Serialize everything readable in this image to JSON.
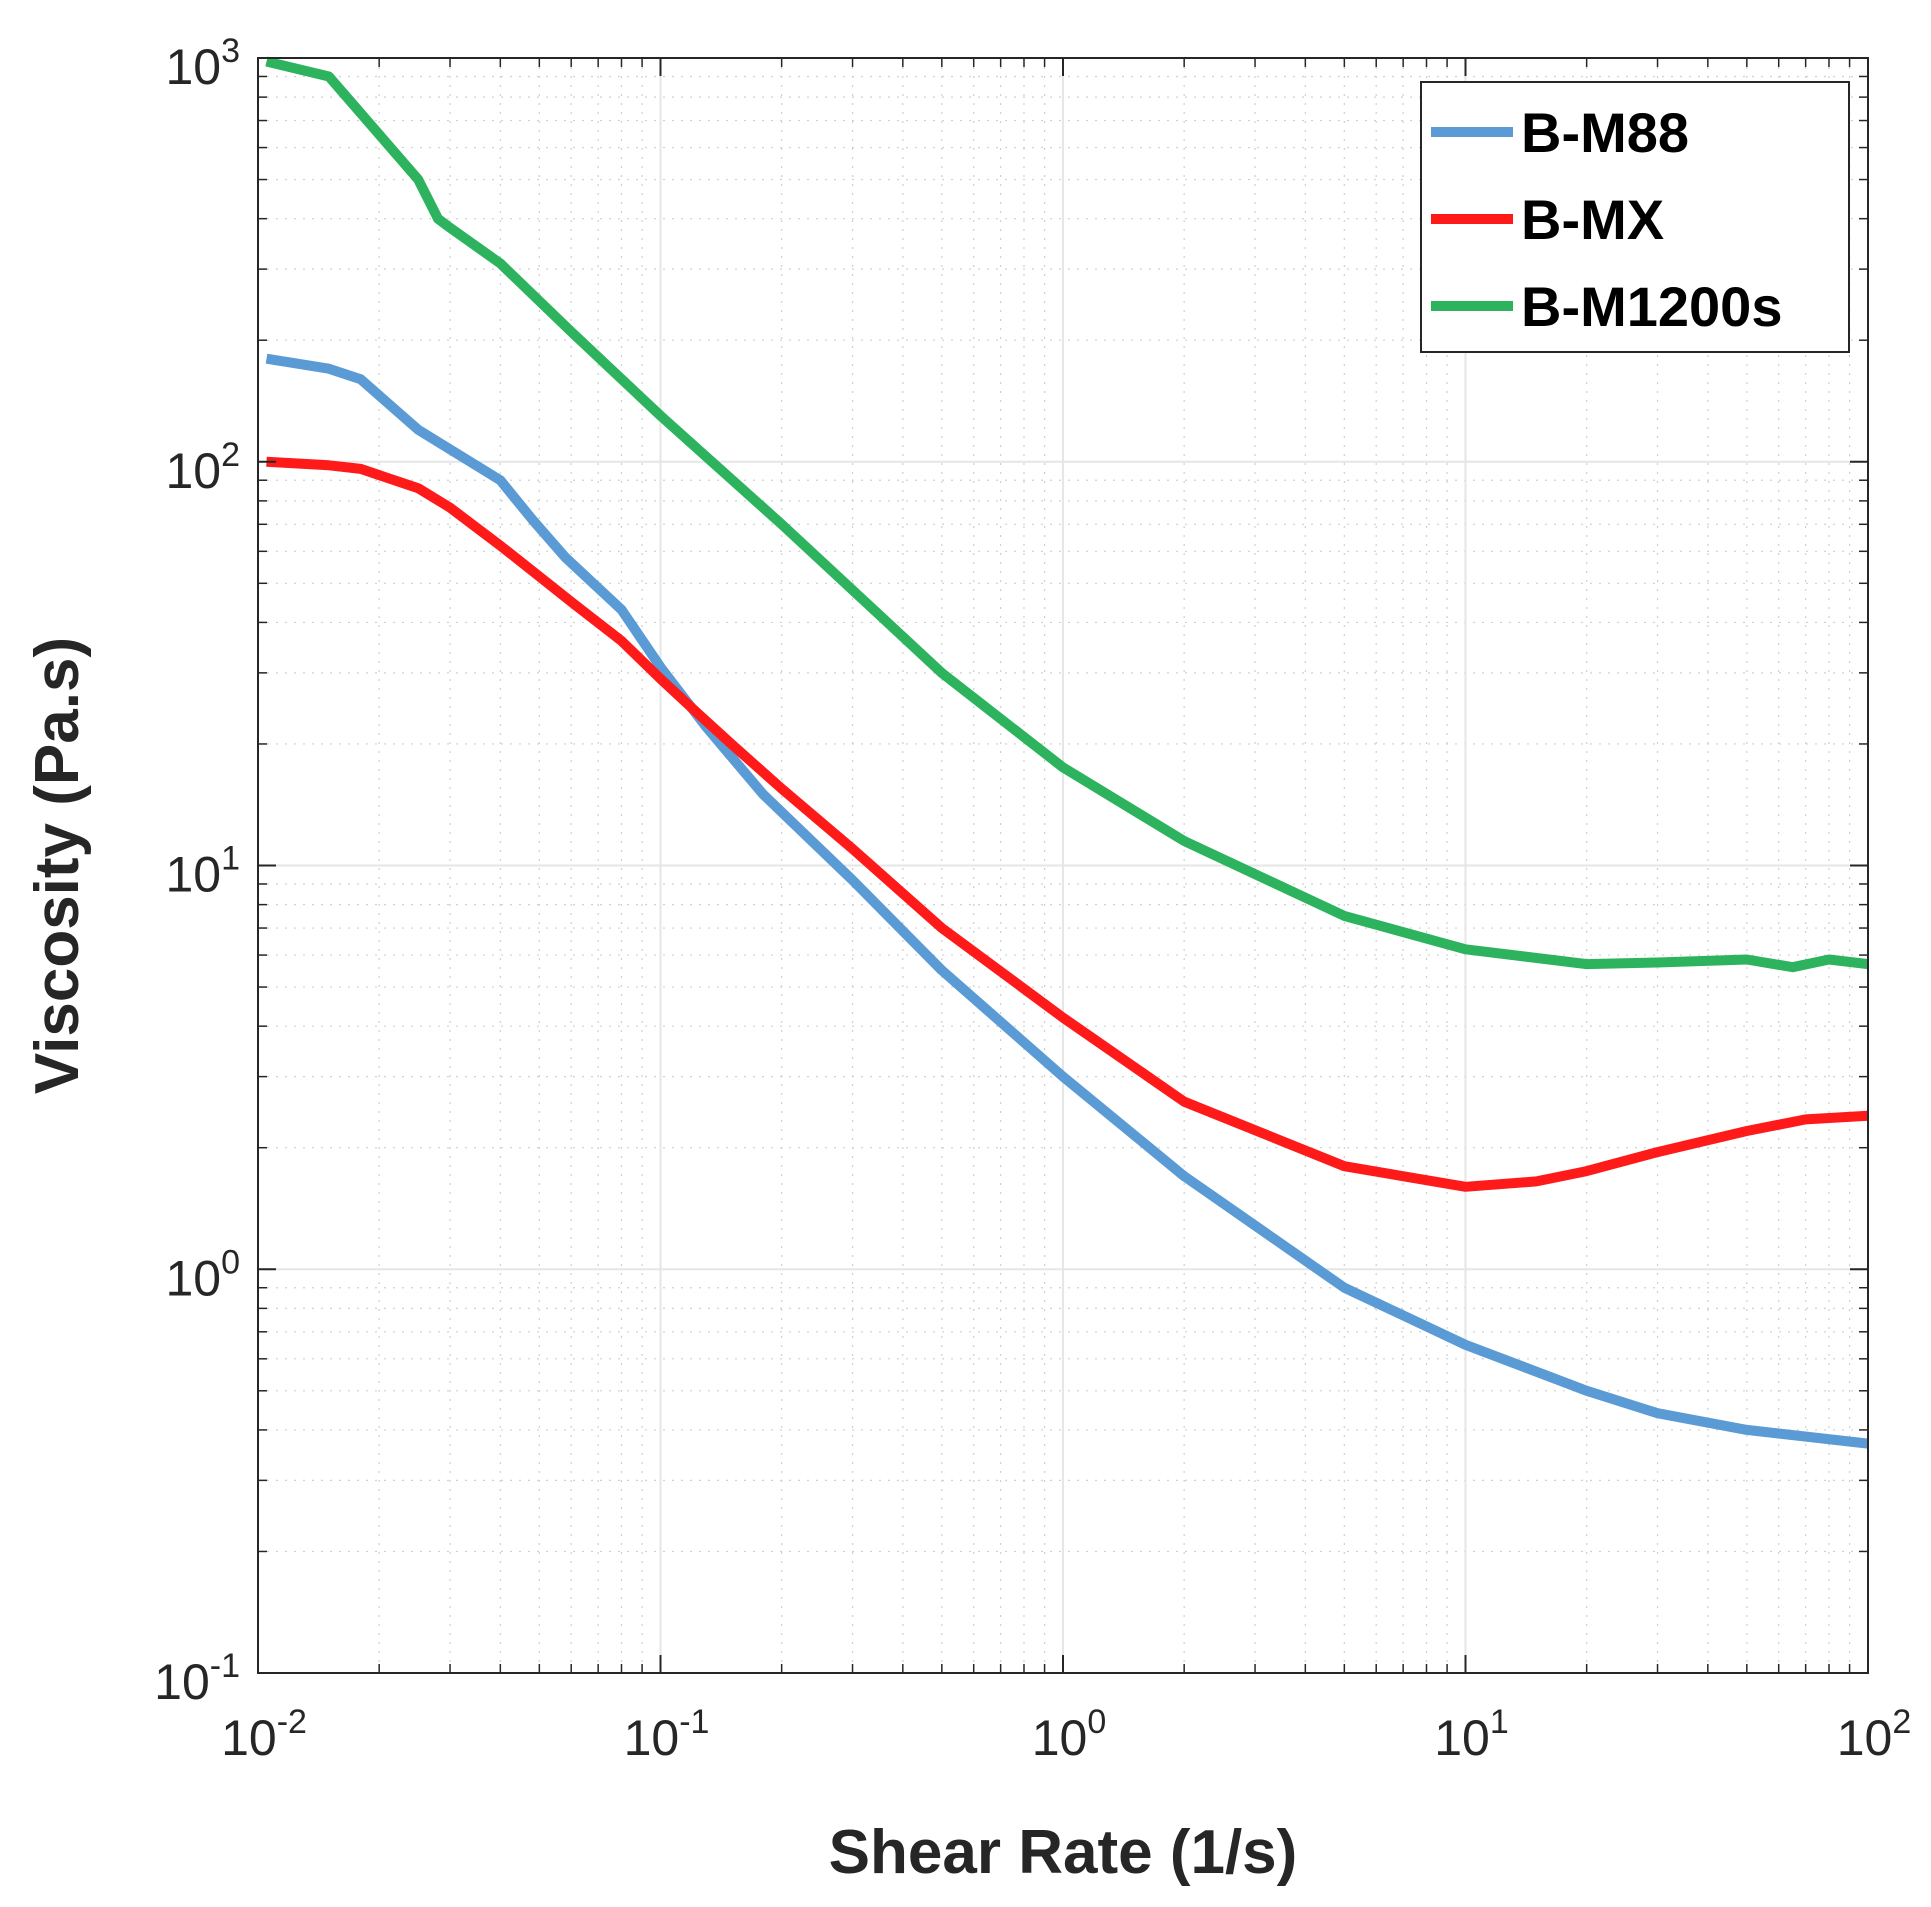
{
  "chart_data": {
    "type": "line",
    "xscale": "log",
    "yscale": "log",
    "xlim": [
      0.01,
      100
    ],
    "ylim": [
      0.1,
      1000
    ],
    "grid": true,
    "xlabel": "Shear Rate (1/s)",
    "ylabel": "Viscosity (Pa.s)",
    "legend_position": "top-right",
    "x_ticks": [
      {
        "base": "10",
        "exp": "-2",
        "value": 0.01
      },
      {
        "base": "10",
        "exp": "-1",
        "value": 0.1
      },
      {
        "base": "10",
        "exp": "0",
        "value": 1
      },
      {
        "base": "10",
        "exp": "1",
        "value": 10
      },
      {
        "base": "10",
        "exp": "2",
        "value": 100
      }
    ],
    "y_ticks": [
      {
        "base": "10",
        "exp": "-1",
        "value": 0.1
      },
      {
        "base": "10",
        "exp": "0",
        "value": 1
      },
      {
        "base": "10",
        "exp": "1",
        "value": 10
      },
      {
        "base": "10",
        "exp": "2",
        "value": 100
      },
      {
        "base": "10",
        "exp": "3",
        "value": 1000
      }
    ],
    "series": [
      {
        "name": "B-M88",
        "color": "#5b9bd5",
        "x": [
          0.0105,
          0.015,
          0.018,
          0.025,
          0.04,
          0.048,
          0.058,
          0.08,
          0.1,
          0.13,
          0.18,
          0.3,
          0.5,
          1,
          2,
          5,
          10,
          20,
          30,
          50,
          100
        ],
        "y": [
          180,
          170,
          160,
          120,
          90,
          72,
          58,
          43,
          31,
          22,
          15,
          9.2,
          5.5,
          3,
          1.7,
          0.9,
          0.65,
          0.5,
          0.44,
          0.4,
          0.37
        ]
      },
      {
        "name": "B-MX",
        "color": "#ff1a1a",
        "x": [
          0.0105,
          0.015,
          0.018,
          0.025,
          0.03,
          0.04,
          0.05,
          0.06,
          0.08,
          0.1,
          0.12,
          0.15,
          0.2,
          0.3,
          0.5,
          1,
          2,
          5,
          10,
          15,
          20,
          30,
          50,
          70,
          100
        ],
        "y": [
          100,
          98,
          96,
          86,
          77,
          62,
          52,
          45,
          36,
          29,
          24.5,
          20,
          15.5,
          11,
          7,
          4.2,
          2.6,
          1.8,
          1.6,
          1.65,
          1.75,
          1.95,
          2.2,
          2.35,
          2.4
        ]
      },
      {
        "name": "B-M1200s",
        "color": "#2db35d",
        "x": [
          0.0105,
          0.015,
          0.025,
          0.028,
          0.03,
          0.04,
          0.06,
          0.1,
          0.2,
          0.5,
          1,
          2,
          5,
          10,
          20,
          30,
          50,
          65,
          80,
          100
        ],
        "y": [
          980,
          900,
          500,
          400,
          380,
          310,
          210,
          130,
          70,
          30,
          17.5,
          11.5,
          7.5,
          6.2,
          5.7,
          5.75,
          5.85,
          5.6,
          5.85,
          5.7
        ]
      }
    ]
  }
}
